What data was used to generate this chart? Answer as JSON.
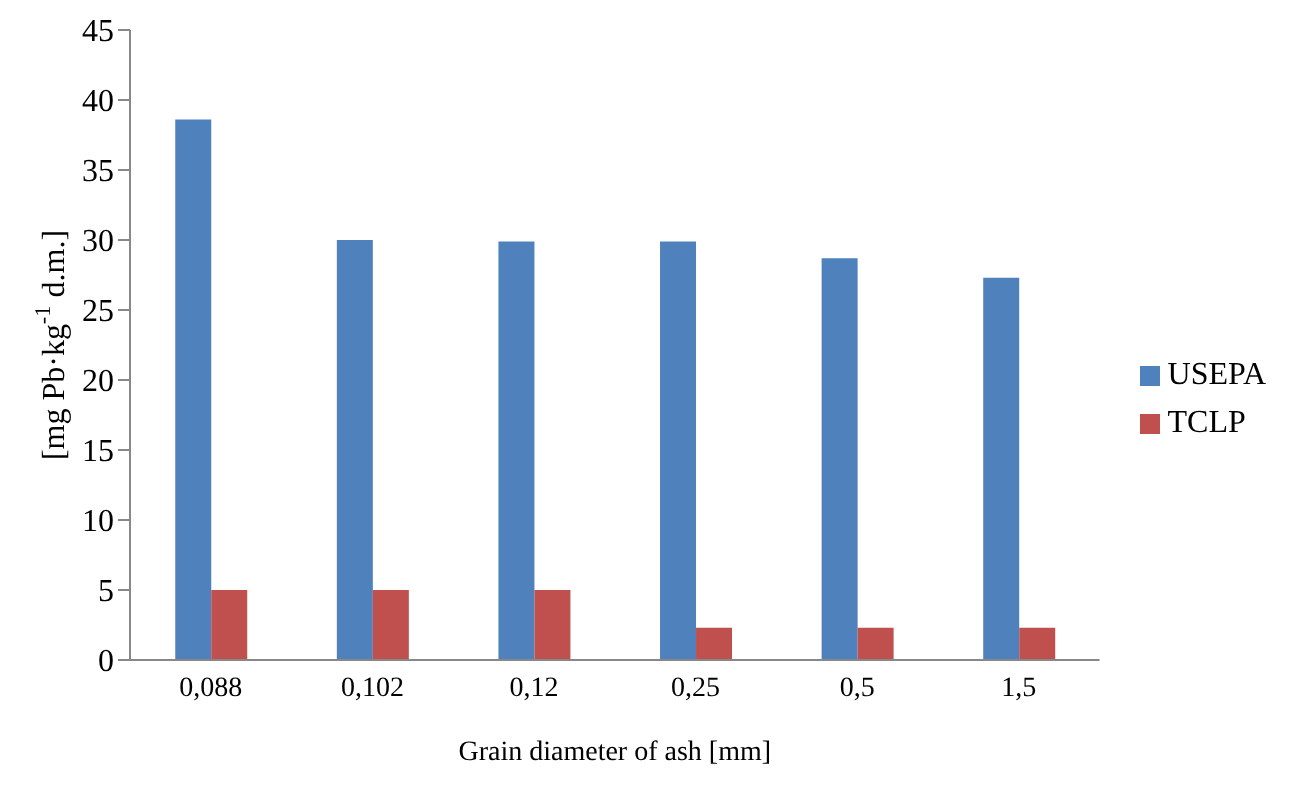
{
  "chart_data": {
    "type": "bar",
    "xlabel": "Grain diameter  of ash [mm]",
    "ylabel": "[mg Pb·kg$^{-1}$ d.m.]",
    "categories": [
      "0,088",
      "0,102",
      "0,12",
      "0,25",
      "0,5",
      "1,5"
    ],
    "series": [
      {
        "name": "USEPA",
        "color": "#4f81bd",
        "values": [
          38.6,
          30.0,
          29.9,
          29.9,
          28.7,
          27.3
        ]
      },
      {
        "name": "TCLP",
        "color": "#c0504d",
        "values": [
          5,
          5,
          5,
          2.3,
          2.3,
          2.3
        ]
      }
    ],
    "ylim": [
      0,
      45
    ],
    "yticks": [
      0,
      5,
      10,
      15,
      20,
      25,
      30,
      35,
      40,
      45
    ],
    "grid": false,
    "legend": "right"
  }
}
